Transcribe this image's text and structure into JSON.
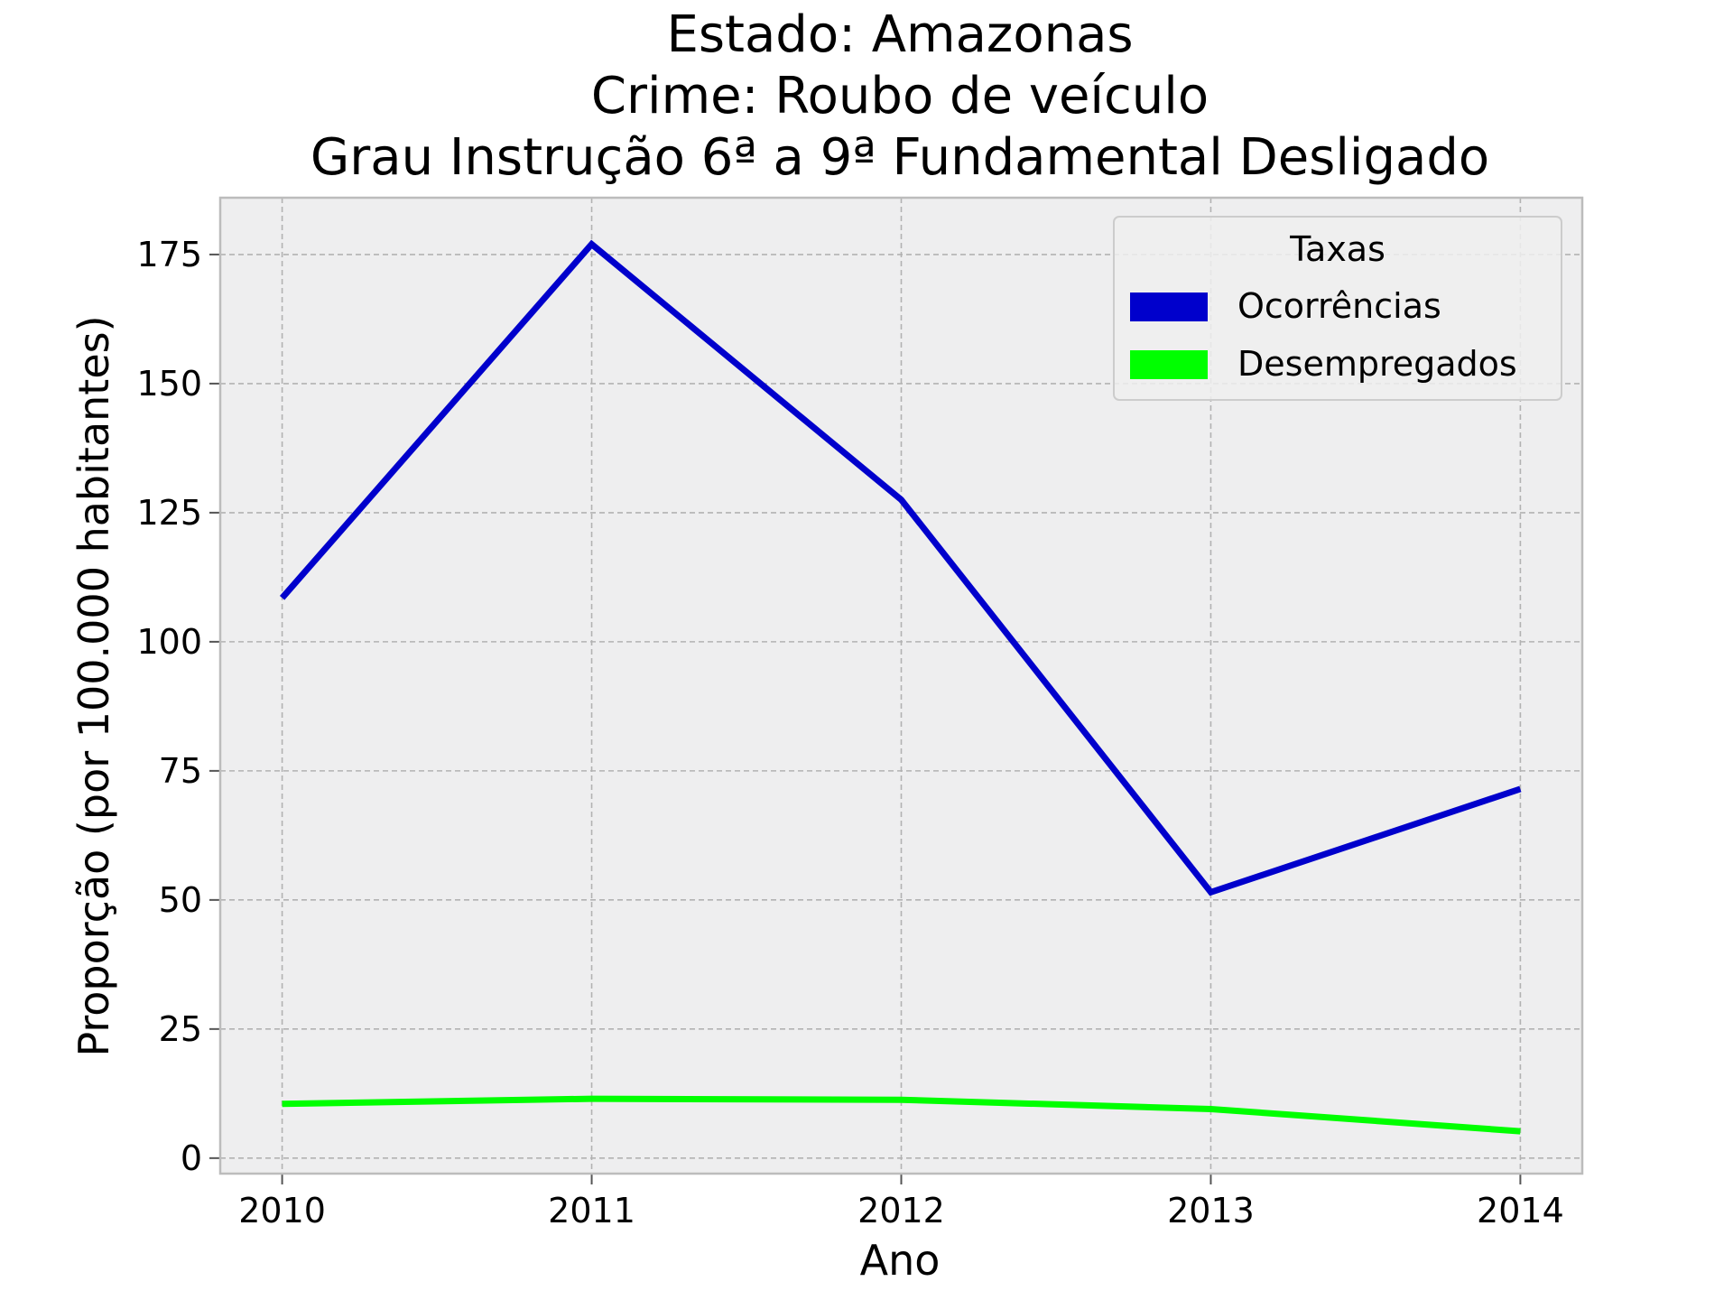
{
  "chart_data": {
    "type": "line",
    "title_lines": [
      "Estado: Amazonas",
      "Crime: Roubo de veículo",
      "Grau Instrução  6ª a 9ª Fundamental   Desligado"
    ],
    "xlabel": "Ano",
    "ylabel": "Proporção (por 100.000 habitantes)",
    "x": [
      2010,
      2011,
      2012,
      2013,
      2014
    ],
    "x_tick_labels": [
      "2010",
      "2011",
      "2012",
      "2013",
      "2014"
    ],
    "y_ticks": [
      0,
      25,
      50,
      75,
      100,
      125,
      150,
      175
    ],
    "y_tick_labels": [
      "0",
      "25",
      "50",
      "75",
      "100",
      "125",
      "150",
      "175"
    ],
    "xlim": [
      2009.8,
      2014.2
    ],
    "ylim": [
      -3,
      186
    ],
    "grid": true,
    "legend": {
      "title": "Taxas",
      "placement": "top-right"
    },
    "series": [
      {
        "name": "Ocorrências",
        "color": "#0000cc",
        "values": [
          108.5,
          177,
          127.5,
          51.5,
          71.5
        ]
      },
      {
        "name": "Desempregados",
        "color": "#00ff00",
        "values": [
          10.5,
          11.5,
          11.3,
          9.5,
          5.2
        ]
      }
    ]
  }
}
